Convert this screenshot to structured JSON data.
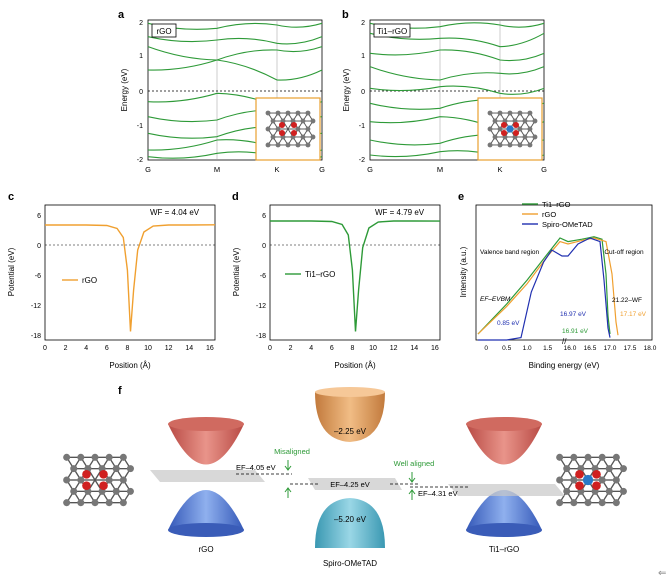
{
  "panels": {
    "a": {
      "letter": "a",
      "label": "rGO",
      "ylabel": "Energy (eV)",
      "yticks": [
        "2",
        "1",
        "0",
        "-1",
        "-2"
      ],
      "kpoints": [
        "G",
        "M",
        "K",
        "G"
      ]
    },
    "b": {
      "letter": "b",
      "label": "Ti1–rGO",
      "ylabel": "Energy (eV)",
      "yticks": [
        "2",
        "1",
        "0",
        "-1",
        "-2"
      ],
      "kpoints": [
        "G",
        "M",
        "K",
        "G"
      ]
    },
    "c": {
      "letter": "c",
      "ylabel": "Potential (eV)",
      "xlabel": "Position (Å)",
      "wf": "WF = 4.04 eV",
      "legend": "rGO",
      "yticks": [
        "6",
        "0",
        "-6",
        "-12",
        "-18"
      ],
      "xticks": [
        "0",
        "2",
        "4",
        "6",
        "8",
        "10",
        "12",
        "14",
        "16"
      ]
    },
    "d": {
      "letter": "d",
      "ylabel": "Potential (eV)",
      "xlabel": "Position (Å)",
      "wf": "WF = 4.79 eV",
      "legend": "Ti1–rGO",
      "yticks": [
        "6",
        "0",
        "-6",
        "-12",
        "-18"
      ],
      "xticks": [
        "0",
        "2",
        "4",
        "6",
        "8",
        "10",
        "12",
        "14",
        "16"
      ]
    },
    "e": {
      "letter": "e",
      "ylabel": "Intensity (a.u.)",
      "xlabel": "Binding energy (eV)",
      "legend": [
        "Ti1–rGO",
        "rGO",
        "Spiro-OMeTAD"
      ],
      "region_left": "Valence band region",
      "region_right": "Cut-off region",
      "ef_label": "EF–EVBM",
      "cutoff_label": "21.22–WF",
      "values": [
        "0.85 eV",
        "16.97 eV",
        "16.91 eV",
        "17.17 eV"
      ],
      "xticks": [
        "0",
        "0.5",
        "1.0",
        "1.5",
        "16.0",
        "16.5",
        "17.0",
        "17.5",
        "18.0"
      ]
    },
    "f": {
      "letter": "f",
      "rgo_label": "rGO",
      "spiro_label": "Spiro-OMeTAD",
      "ti_label": "Ti1–rGO",
      "lumo": "–2.25 eV",
      "homo": "–5.20 eV",
      "ef_rgo": "EF–4.05 eV",
      "ef_spiro": "EF–4.25 eV",
      "ef_ti": "EF–4.31 eV",
      "misaligned": "Misaligned",
      "well_aligned": "Well aligned"
    }
  },
  "colors": {
    "green": "#2e9a38",
    "orange": "#f0a030",
    "blue": "#2030b0",
    "inset_border": "#e8a030"
  },
  "chart_data": [
    {
      "type": "line",
      "panel": "a",
      "xlabel": "",
      "ylabel": "Energy (eV)",
      "ylim": [
        -2.1,
        2.1
      ],
      "categories": [
        "G",
        "M",
        "K",
        "G"
      ],
      "fermi_level": 0,
      "series_shape": "electronic band structure, approximate",
      "bands_at_kpoints": [
        [
          2.0,
          1.85,
          1.95,
          2.0
        ],
        [
          1.6,
          1.5,
          1.4,
          1.6
        ],
        [
          1.3,
          0.9,
          1.2,
          1.3
        ],
        [
          0.6,
          0.9,
          0.3,
          0.6
        ],
        [
          -0.35,
          -0.1,
          -0.5,
          -0.35
        ],
        [
          -0.8,
          -0.9,
          -0.6,
          -0.8
        ],
        [
          -1.3,
          -1.4,
          -1.1,
          -1.3
        ],
        [
          -1.8,
          -1.5,
          -1.75,
          -1.8
        ],
        [
          -2.0,
          -1.9,
          -2.0,
          -2.0
        ]
      ]
    },
    {
      "type": "line",
      "panel": "b",
      "xlabel": "",
      "ylabel": "Energy (eV)",
      "ylim": [
        -2.1,
        2.1
      ],
      "categories": [
        "G",
        "M",
        "K",
        "G"
      ],
      "fermi_level": 0,
      "series_shape": "electronic band structure, approximate",
      "bands_at_kpoints": [
        [
          2.0,
          1.9,
          1.95,
          2.0
        ],
        [
          1.7,
          1.55,
          1.3,
          1.7
        ],
        [
          1.1,
          1.2,
          0.9,
          1.1
        ],
        [
          0.7,
          0.3,
          0.5,
          0.7
        ],
        [
          0.05,
          0.1,
          -0.1,
          0.05
        ],
        [
          -0.4,
          -0.55,
          -0.3,
          -0.4
        ],
        [
          -0.95,
          -0.8,
          -1.2,
          -0.95
        ],
        [
          -1.5,
          -1.6,
          -1.35,
          -1.5
        ],
        [
          -1.95,
          -1.85,
          -2.0,
          -1.95
        ]
      ]
    },
    {
      "type": "line",
      "panel": "c",
      "xlabel": "Position (Å)",
      "ylabel": "Potential (eV)",
      "xlim": [
        0,
        16.5
      ],
      "ylim": [
        -19,
        8
      ],
      "series": [
        {
          "name": "rGO",
          "x": [
            0,
            2,
            4,
            6,
            7,
            7.6,
            8,
            8.3,
            8.6,
            9,
            9.6,
            10.5,
            12,
            14,
            16.5
          ],
          "y": [
            4.0,
            4.0,
            4.0,
            3.9,
            3.3,
            1.5,
            -5,
            -17.3,
            -9,
            -1,
            2.6,
            3.8,
            4.0,
            4.0,
            4.04
          ]
        }
      ],
      "annotations": [
        "WF = 4.04 eV"
      ]
    },
    {
      "type": "line",
      "panel": "d",
      "xlabel": "Position (Å)",
      "ylabel": "Potential (eV)",
      "xlim": [
        0,
        16.5
      ],
      "ylim": [
        -19,
        8
      ],
      "series": [
        {
          "name": "Ti1–rGO",
          "x": [
            0,
            2,
            4,
            6,
            7,
            7.6,
            8,
            8.3,
            8.6,
            9,
            9.6,
            10.5,
            12,
            14,
            16.5
          ],
          "y": [
            4.8,
            4.8,
            4.8,
            4.7,
            4.1,
            2,
            -5,
            -17.3,
            -9,
            -0.5,
            3.4,
            4.6,
            4.8,
            4.8,
            4.79
          ]
        }
      ],
      "annotations": [
        "WF = 4.79 eV"
      ]
    },
    {
      "type": "line",
      "panel": "e",
      "xlabel": "Binding energy (eV)",
      "ylabel": "Intensity (a.u.)",
      "xlim_left": [
        -0.2,
        1.85
      ],
      "xlim_right": [
        15.95,
        18.0
      ],
      "series": [
        {
          "name": "Ti1–rGO",
          "x_left": [
            -0.2,
            0.5,
            1.0,
            1.5,
            1.8
          ],
          "y_left": [
            0.05,
            0.3,
            0.5,
            0.72,
            0.85
          ],
          "x_right": [
            15.95,
            16.3,
            16.6,
            16.8,
            16.9,
            16.95,
            17.0
          ],
          "y_right": [
            0.82,
            0.84,
            0.86,
            0.84,
            0.55,
            0.2,
            0.05
          ]
        },
        {
          "name": "rGO",
          "x_left": [
            -0.2,
            0.5,
            1.0,
            1.5,
            1.8
          ],
          "y_left": [
            0.05,
            0.28,
            0.47,
            0.7,
            0.82
          ],
          "x_right": [
            15.95,
            16.3,
            16.6,
            16.9,
            17.05,
            17.15,
            17.2
          ],
          "y_right": [
            0.8,
            0.83,
            0.85,
            0.82,
            0.55,
            0.15,
            0.04
          ]
        },
        {
          "name": "Spiro-OMeTAD",
          "x_left": [
            -0.2,
            0.5,
            0.85,
            1.1,
            1.4,
            1.6,
            1.85
          ],
          "y_left": [
            0.0,
            0.0,
            0.02,
            0.4,
            0.65,
            0.75,
            0.7
          ],
          "x_right": [
            15.95,
            16.2,
            16.5,
            16.75,
            16.85,
            16.95,
            17.0
          ],
          "y_right": [
            0.7,
            0.8,
            0.85,
            0.82,
            0.5,
            0.1,
            0.02
          ]
        }
      ],
      "annotations": [
        "0.85 eV",
        "16.97 eV",
        "16.91 eV",
        "17.17 eV"
      ]
    }
  ]
}
